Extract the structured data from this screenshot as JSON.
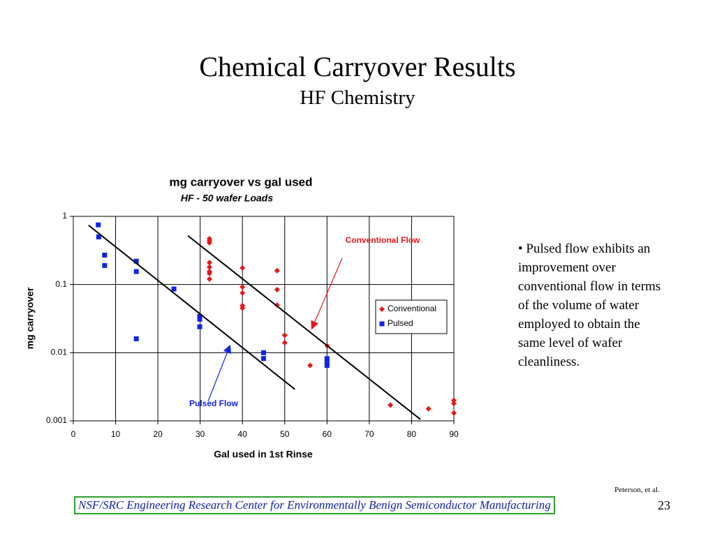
{
  "slide": {
    "title": "Chemical Carryover Results",
    "subtitle": "HF Chemistry",
    "bullet": "• Pulsed flow exhibits an improvement over conventional flow in terms of the volume of water employed to obtain the same level of wafer cleanliness.",
    "citation": "Peterson, et al.",
    "footer": "NSF/SRC Engineering Research Center for Environmentally Benign Semiconductor Manufacturing",
    "page_number": "23"
  },
  "chart_data": {
    "type": "scatter",
    "title": "mg carryover vs gal used",
    "subtitle": "HF - 50 wafer Loads",
    "x_label": "Gal used in 1st Rinse",
    "y_label": "mg carryover",
    "xlim": [
      0,
      90
    ],
    "xticks": [
      0,
      10,
      20,
      30,
      40,
      50,
      60,
      70,
      80,
      90
    ],
    "ylim": [
      0.001,
      1
    ],
    "yticks": [
      1,
      0.1,
      0.01,
      0.001
    ],
    "y_scale": "log",
    "grid": true,
    "legend_position": "right",
    "series": [
      {
        "name": "Conventional",
        "color": "#e8161b",
        "marker": "diamond",
        "x": [
          32.2,
          32.2,
          32.2,
          32.2,
          32.2,
          32.2,
          32.2,
          32.2,
          40,
          40,
          40,
          40,
          40,
          48.2,
          48.2,
          48.2,
          50,
          50,
          60.1,
          56,
          75,
          84,
          90,
          90,
          90
        ],
        "values": [
          0.47,
          0.44,
          0.41,
          0.21,
          0.18,
          0.155,
          0.145,
          0.12,
          0.175,
          0.092,
          0.075,
          0.049,
          0.045,
          0.16,
          0.084,
          0.05,
          0.018,
          0.014,
          0.0125,
          0.0065,
          0.0017,
          0.0015,
          0.002,
          0.0018,
          0.0013
        ]
      },
      {
        "name": "Pulsed",
        "color": "#1023e8",
        "marker": "square",
        "x": [
          5.9,
          6,
          7.4,
          7.4,
          14.9,
          14.9,
          14.9,
          23.8,
          29.9,
          29.9,
          29.9,
          45,
          45,
          60,
          60,
          60
        ],
        "values": [
          0.75,
          0.5,
          0.27,
          0.19,
          0.22,
          0.155,
          0.016,
          0.086,
          0.034,
          0.031,
          0.024,
          0.01,
          0.0082,
          0.0082,
          0.0073,
          0.0065
        ]
      }
    ],
    "trend_lines": [
      {
        "x": [
          3.6,
          52.4
        ],
        "values": [
          0.74,
          0.0029
        ]
      },
      {
        "x": [
          27.1,
          82.1
        ],
        "values": [
          0.52,
          0.00105
        ]
      }
    ],
    "annotations": [
      {
        "text": "Conventional Flow",
        "color": "#e8161b"
      },
      {
        "text": "Pulsed Flow",
        "color": "#1023e8"
      }
    ]
  }
}
